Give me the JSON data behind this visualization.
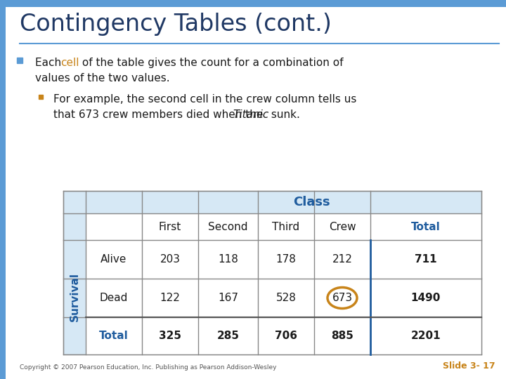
{
  "title": "Contingency Tables (cont.)",
  "title_color": "#1F3864",
  "title_fontsize": 24,
  "background_color": "#FFFFFF",
  "bullet_color": "#5B9BD5",
  "sub_bullet_color": "#C8841A",
  "table_bg": "#D6E8F5",
  "table_header_color": "#1F5C9E",
  "table_border_color": "#888888",
  "slide_label": "Slide 3- 17",
  "slide_label_color": "#C8841A",
  "copyright_text": "Copyright © 2007 Pearson Education, Inc. Publishing as Pearson Addison-Wesley",
  "col_headers": [
    "First",
    "Second",
    "Third",
    "Crew",
    "Total"
  ],
  "row_headers": [
    "Alive",
    "Dead",
    "Total"
  ],
  "data": [
    [
      203,
      118,
      178,
      212,
      711
    ],
    [
      122,
      167,
      528,
      673,
      1490
    ],
    [
      325,
      285,
      706,
      885,
      2201
    ]
  ],
  "circle_color": "#C8841A",
  "survival_label": "Survival",
  "class_label": "Class",
  "accent_color": "#5B9BD5",
  "top_bar_height": 0.018,
  "left_bar_width": 0.012
}
